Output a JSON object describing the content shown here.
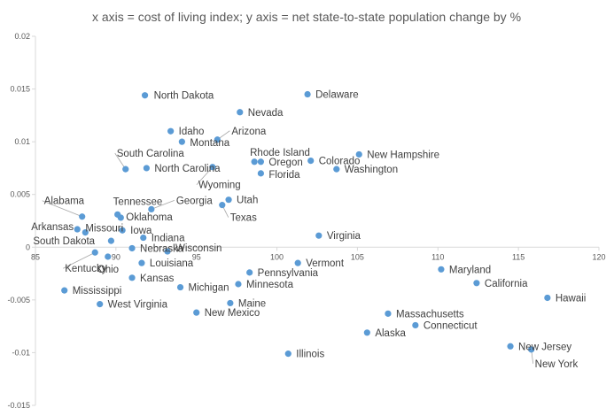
{
  "chart_data": {
    "type": "scatter",
    "title": "x axis = cost of living index; y axis = net state-to-state population change by %",
    "xlabel": "",
    "ylabel": "",
    "xlim": [
      85,
      120
    ],
    "ylim": [
      -0.015,
      0.02
    ],
    "x_ticks": [
      85,
      90,
      95,
      100,
      105,
      110,
      115,
      120
    ],
    "x_tick_labels": [
      "85",
      "90",
      "95",
      "100",
      "105",
      "110",
      "115",
      "120"
    ],
    "y_ticks": [
      -0.015,
      -0.01,
      -0.005,
      0,
      0.005,
      0.01,
      0.015,
      0.02
    ],
    "y_tick_labels": [
      "-0.015",
      "-0.01",
      "-0.005",
      "0",
      "0.005",
      "0.01",
      "0.015",
      "0.02"
    ],
    "grid": false,
    "legend": "none",
    "point_color": "#5B9BD5",
    "points": [
      {
        "label": "North Dakota",
        "x": 91.8,
        "y": 0.0144
      },
      {
        "label": "Delaware",
        "x": 101.9,
        "y": 0.0145
      },
      {
        "label": "Nevada",
        "x": 97.7,
        "y": 0.0128
      },
      {
        "label": "Idaho",
        "x": 93.4,
        "y": 0.011
      },
      {
        "label": "Arizona",
        "x": 96.3,
        "y": 0.0102
      },
      {
        "label": "Montana",
        "x": 94.1,
        "y": 0.01
      },
      {
        "label": "New Hampshire",
        "x": 105.1,
        "y": 0.0088
      },
      {
        "label": "Rhode Island",
        "x": 98.6,
        "y": 0.0081
      },
      {
        "label": "Oregon",
        "x": 99.0,
        "y": 0.0081
      },
      {
        "label": "Colorado",
        "x": 102.1,
        "y": 0.0082
      },
      {
        "label": "Washington",
        "x": 103.7,
        "y": 0.0074
      },
      {
        "label": "South Carolina",
        "x": 90.6,
        "y": 0.0074
      },
      {
        "label": "North Carolina",
        "x": 91.9,
        "y": 0.0075
      },
      {
        "label": "Wyoming",
        "x": 96.0,
        "y": 0.0076
      },
      {
        "label": "Florida",
        "x": 99.0,
        "y": 0.007
      },
      {
        "label": "Utah",
        "x": 97.0,
        "y": 0.0045
      },
      {
        "label": "Georgia",
        "x": 92.2,
        "y": 0.0036
      },
      {
        "label": "Texas",
        "x": 96.6,
        "y": 0.004
      },
      {
        "label": "Alabama",
        "x": 87.9,
        "y": 0.0029
      },
      {
        "label": "Tennessee",
        "x": 90.1,
        "y": 0.0031
      },
      {
        "label": "Oklahoma",
        "x": 90.3,
        "y": 0.0028
      },
      {
        "label": "Arkansas",
        "x": 87.6,
        "y": 0.0017
      },
      {
        "label": "Missouri",
        "x": 88.1,
        "y": 0.0014
      },
      {
        "label": "Iowa",
        "x": 90.4,
        "y": 0.0016
      },
      {
        "label": "Indiana",
        "x": 91.7,
        "y": 0.0009
      },
      {
        "label": "South Dakota",
        "x": 89.7,
        "y": 0.0006
      },
      {
        "label": "Virginia",
        "x": 102.6,
        "y": 0.0011
      },
      {
        "label": "Nebraska",
        "x": 91.0,
        "y": -0.0001
      },
      {
        "label": "Wisconsin",
        "x": 93.2,
        "y": -0.0004
      },
      {
        "label": "Kentucky",
        "x": 88.7,
        "y": -0.0005
      },
      {
        "label": "Ohio",
        "x": 89.5,
        "y": -0.0009
      },
      {
        "label": "Louisiana",
        "x": 91.6,
        "y": -0.0015
      },
      {
        "label": "Vermont",
        "x": 101.3,
        "y": -0.0015
      },
      {
        "label": "Pennsylvania",
        "x": 98.3,
        "y": -0.0024
      },
      {
        "label": "Maryland",
        "x": 110.2,
        "y": -0.0021
      },
      {
        "label": "Kansas",
        "x": 91.0,
        "y": -0.0029
      },
      {
        "label": "Minnesota",
        "x": 97.6,
        "y": -0.0035
      },
      {
        "label": "California",
        "x": 112.4,
        "y": -0.0034
      },
      {
        "label": "Michigan",
        "x": 94.0,
        "y": -0.0038
      },
      {
        "label": "Mississippi",
        "x": 86.8,
        "y": -0.0041
      },
      {
        "label": "Hawaii",
        "x": 116.8,
        "y": -0.0048
      },
      {
        "label": "West Virginia",
        "x": 89.0,
        "y": -0.0054
      },
      {
        "label": "Maine",
        "x": 97.1,
        "y": -0.0053
      },
      {
        "label": "New Mexico",
        "x": 95.0,
        "y": -0.0062
      },
      {
        "label": "Massachusetts",
        "x": 106.9,
        "y": -0.0063
      },
      {
        "label": "Connecticut",
        "x": 108.6,
        "y": -0.0074
      },
      {
        "label": "Alaska",
        "x": 105.6,
        "y": -0.0081
      },
      {
        "label": "New Jersey",
        "x": 114.5,
        "y": -0.0094
      },
      {
        "label": "New York",
        "x": 115.8,
        "y": -0.0097
      },
      {
        "label": "Illinois",
        "x": 100.7,
        "y": -0.0101
      }
    ]
  }
}
